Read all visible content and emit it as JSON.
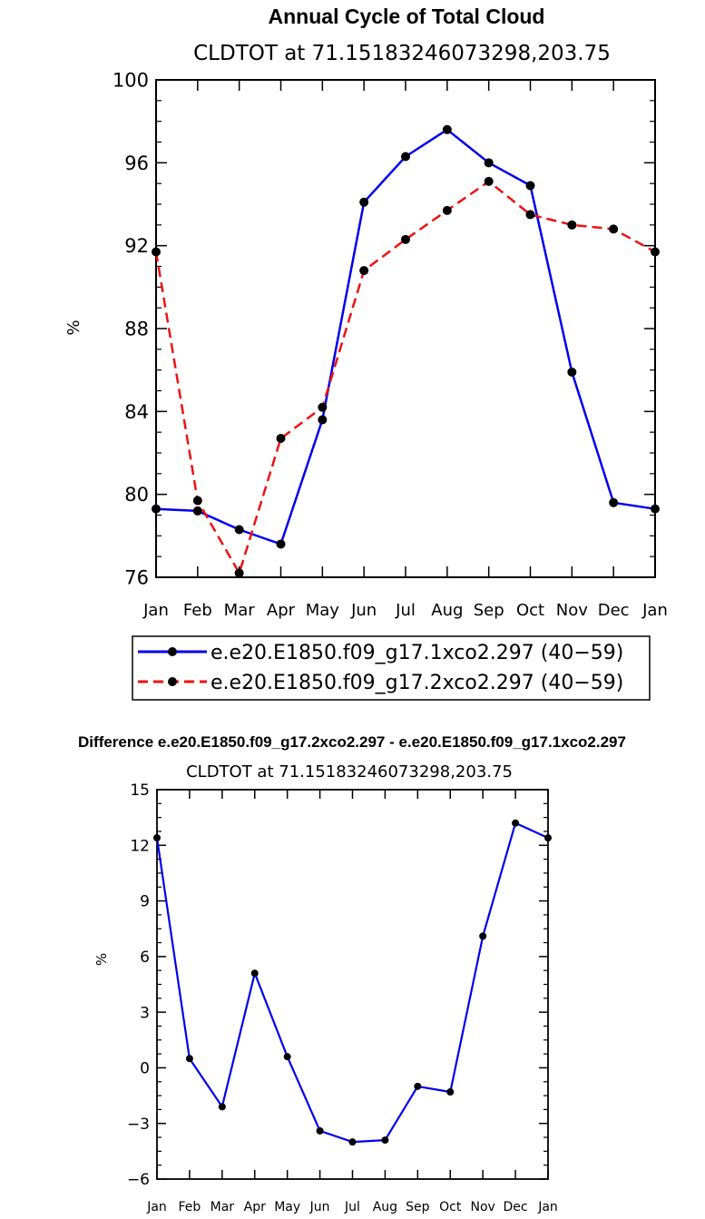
{
  "colors": {
    "series1": "#0000ee",
    "series2": "#ee1111",
    "marker": "#000000"
  },
  "chart_data": [
    {
      "type": "line",
      "title": "Annual Cycle of Total Cloud",
      "subtitle": "CLDTOT  at  71.15183246073298,203.75",
      "ylabel": "%",
      "xlabel": "",
      "categories": [
        "Jan",
        "Feb",
        "Mar",
        "Apr",
        "May",
        "Jun",
        "Jul",
        "Aug",
        "Sep",
        "Oct",
        "Nov",
        "Dec",
        "Jan"
      ],
      "ylim": [
        76,
        100
      ],
      "yticks": [
        "76",
        "80",
        "84",
        "88",
        "92",
        "96",
        "100"
      ],
      "ytick_values": [
        76,
        80,
        84,
        88,
        92,
        96,
        100
      ],
      "grid": false,
      "legend": "below",
      "series": [
        {
          "name": "e.e20.E1850.f09_g17.1xco2.297 (40−59)",
          "style": "solid",
          "values": [
            79.3,
            79.2,
            78.3,
            77.6,
            83.6,
            94.1,
            96.3,
            97.6,
            96.0,
            94.9,
            85.9,
            79.6,
            79.3
          ]
        },
        {
          "name": "e.e20.E1850.f09_g17.2xco2.297 (40−59)",
          "style": "dashed",
          "values": [
            91.7,
            79.7,
            76.2,
            82.7,
            84.2,
            90.8,
            92.3,
            93.7,
            95.1,
            93.5,
            93.0,
            92.8,
            91.7
          ]
        }
      ]
    },
    {
      "type": "line",
      "title": "Difference e.e20.E1850.f09_g17.2xco2.297 - e.e20.E1850.f09_g17.1xco2.297",
      "subtitle": "CLDTOT  at  71.15183246073298,203.75",
      "ylabel": "%",
      "xlabel": "",
      "categories": [
        "Jan",
        "Feb",
        "Mar",
        "Apr",
        "May",
        "Jun",
        "Jul",
        "Aug",
        "Sep",
        "Oct",
        "Nov",
        "Dec",
        "Jan"
      ],
      "ylim": [
        -6,
        15
      ],
      "yticks": [
        "−6",
        "−3",
        "0",
        "3",
        "6",
        "9",
        "12",
        "15"
      ],
      "ytick_values": [
        -6,
        -3,
        0,
        3,
        6,
        9,
        12,
        15
      ],
      "grid": false,
      "series": [
        {
          "style": "solid",
          "values": [
            12.4,
            0.5,
            -2.1,
            5.1,
            0.6,
            -3.4,
            -4.0,
            -3.9,
            -1.0,
            -1.3,
            7.1,
            13.2,
            12.4
          ]
        }
      ]
    }
  ]
}
